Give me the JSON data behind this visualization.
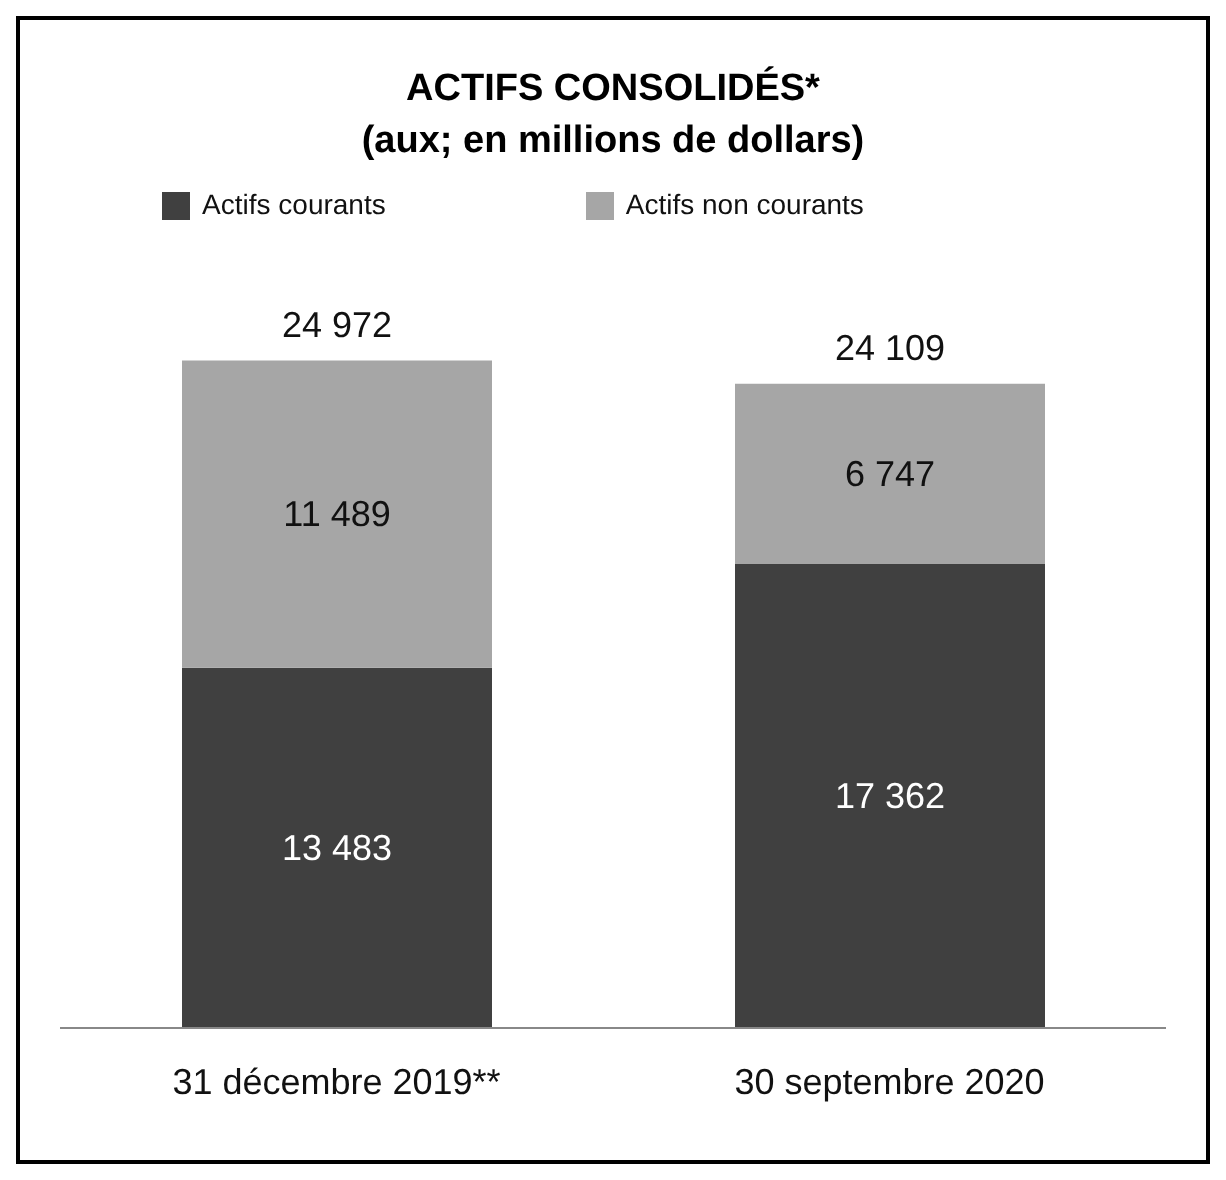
{
  "chart_data": {
    "type": "bar",
    "title": "ACTIFS CONSOLIDÉS*",
    "subtitle": "(aux; en millions de dollars)",
    "categories": [
      "31 décembre 2019**",
      "30 septembre 2020"
    ],
    "stacked": true,
    "legend": "top",
    "series": [
      {
        "name": "Actifs courants",
        "color": "#404040",
        "values": [
          13483,
          17362
        ],
        "value_labels": [
          "13 483",
          "17 362"
        ]
      },
      {
        "name": "Actifs non courants",
        "color": "#a6a6a6",
        "values": [
          11489,
          6747
        ],
        "value_labels": [
          "11 489",
          "6 747"
        ]
      }
    ],
    "totals": [
      "24 972",
      "24 109"
    ]
  }
}
